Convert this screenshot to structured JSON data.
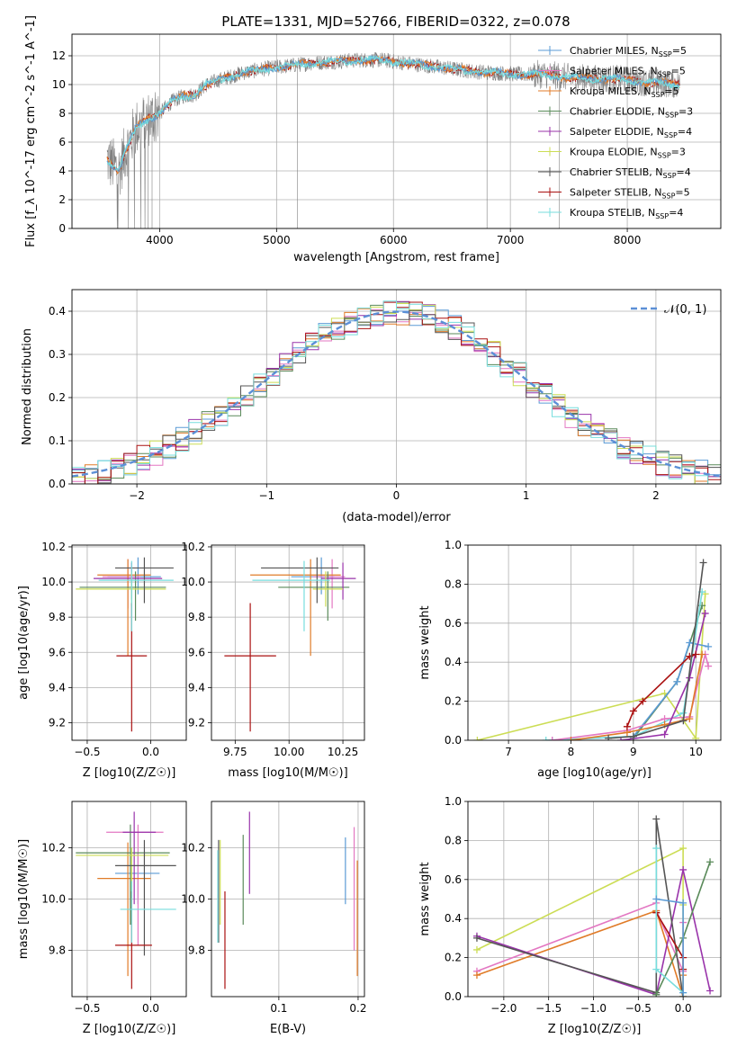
{
  "page": {
    "title": "PLATE=1331, MJD=52766, FIBERID=0322, z=0.078"
  },
  "colors": {
    "Chabrier MILES": "#5b9bd5",
    "Salpeter MILES": "#e377c2",
    "Kroupa MILES": "#e07b28",
    "Chabrier ELODIE": "#5a8a5a",
    "Salpeter ELODIE": "#9933aa",
    "Kroupa ELODIE": "#ccdd55",
    "Chabrier STELIB": "#555555",
    "Salpeter STELIB": "#aa1111",
    "Kroupa STELIB": "#77dddd",
    "data": "#808080",
    "normal": "#5b8fd6"
  },
  "chart_data": [
    {
      "id": "spectrum",
      "type": "line",
      "title": "PLATE=1331, MJD=52766, FIBERID=0322, z=0.078",
      "xlabel": "wavelength [Angstrom, rest frame]",
      "ylabel": "Flux [f_λ 10^-17 erg cm^-2 s^-1 A^-1]",
      "xlim": [
        3250,
        8800
      ],
      "ylim": [
        0,
        13.5
      ],
      "xticks": [
        4000,
        5000,
        6000,
        7000,
        8000
      ],
      "yticks": [
        0,
        2,
        4,
        6,
        8,
        10,
        12
      ],
      "legend_position": "top-right",
      "legend": [
        {
          "name": "Chabrier MILES",
          "n": "5"
        },
        {
          "name": "Salpeter MILES",
          "n": "5"
        },
        {
          "name": "Kroupa MILES",
          "n": "5"
        },
        {
          "name": "Chabrier ELODIE",
          "n": "3"
        },
        {
          "name": "Salpeter ELODIE",
          "n": "4"
        },
        {
          "name": "Kroupa ELODIE",
          "n": "3"
        },
        {
          "name": "Chabrier STELIB",
          "n": "4"
        },
        {
          "name": "Salpeter STELIB",
          "n": "5"
        },
        {
          "name": "Kroupa STELIB",
          "n": "4"
        }
      ],
      "continuum": [
        [
          3550,
          4.8
        ],
        [
          3650,
          4.0
        ],
        [
          3700,
          5.2
        ],
        [
          3800,
          7.0
        ],
        [
          3900,
          7.6
        ],
        [
          4000,
          8.0
        ],
        [
          4100,
          8.8
        ],
        [
          4200,
          9.2
        ],
        [
          4300,
          9.3
        ],
        [
          4400,
          10.0
        ],
        [
          4500,
          10.3
        ],
        [
          4700,
          10.8
        ],
        [
          4900,
          11.1
        ],
        [
          5100,
          11.3
        ],
        [
          5300,
          11.5
        ],
        [
          5500,
          11.6
        ],
        [
          5700,
          11.7
        ],
        [
          5900,
          11.7
        ],
        [
          6100,
          11.5
        ],
        [
          6300,
          11.3
        ],
        [
          6500,
          11.1
        ],
        [
          6700,
          10.9
        ],
        [
          6900,
          10.8
        ],
        [
          7100,
          10.7
        ],
        [
          7300,
          10.7
        ],
        [
          7500,
          10.5
        ],
        [
          7700,
          10.4
        ],
        [
          7900,
          10.4
        ],
        [
          8100,
          10.2
        ],
        [
          8300,
          10.1
        ],
        [
          8450,
          10.0
        ]
      ]
    },
    {
      "id": "residuals",
      "type": "histogram",
      "xlabel": "(data-model)/error",
      "ylabel": "Normed distribution",
      "xlim": [
        -2.5,
        2.5
      ],
      "ylim": [
        0,
        0.45
      ],
      "xticks": [
        -2,
        -1,
        0,
        1,
        2
      ],
      "yticks": [
        0.0,
        0.1,
        0.2,
        0.3,
        0.4
      ],
      "legend_label": "𝒩(0, 1)",
      "legend_position": "top-right",
      "bin_width": 0.1
    },
    {
      "id": "age-vs-Z",
      "type": "errorbar",
      "xlabel": "Z [log10(Z/Z☉)]",
      "ylabel": "age [log10(age/yr)]",
      "xlim": [
        -0.62,
        0.28
      ],
      "ylim": [
        9.1,
        10.21
      ],
      "xticks": [
        -0.5,
        0.0
      ],
      "yticks": [
        9.2,
        9.4,
        9.6,
        9.8,
        10.0,
        10.2
      ],
      "points": [
        {
          "model": "Chabrier MILES",
          "x": -0.1,
          "y": 10.03,
          "xerr": [
            0.24,
            0.18
          ],
          "yerr": [
            0.1,
            0.11
          ]
        },
        {
          "model": "Salpeter MILES",
          "x": -0.18,
          "y": 10.03,
          "xerr": [
            0.2,
            0.1
          ],
          "yerr": [
            0.18,
            0.1
          ]
        },
        {
          "model": "Kroupa MILES",
          "x": -0.18,
          "y": 10.04,
          "xerr": [
            0.24,
            0.18
          ],
          "yerr": [
            0.46,
            0.09
          ]
        },
        {
          "model": "Chabrier ELODIE",
          "x": -0.12,
          "y": 9.97,
          "xerr": [
            0.44,
            0.24
          ],
          "yerr": [
            0.19,
            0.09
          ]
        },
        {
          "model": "Salpeter ELODIE",
          "x": -0.15,
          "y": 10.02,
          "xerr": [
            0.3,
            0.24
          ],
          "yerr": [
            0.12,
            0.09
          ]
        },
        {
          "model": "Kroupa ELODIE",
          "x": -0.15,
          "y": 9.96,
          "xerr": [
            0.44,
            0.27
          ],
          "yerr": [
            0.1,
            0.1
          ]
        },
        {
          "model": "Chabrier STELIB",
          "x": -0.05,
          "y": 10.08,
          "xerr": [
            0.23,
            0.23
          ],
          "yerr": [
            0.2,
            0.06
          ]
        },
        {
          "model": "Salpeter STELIB",
          "x": -0.15,
          "y": 9.58,
          "xerr": [
            0.12,
            0.12
          ],
          "yerr": [
            0.43,
            0.3
          ]
        },
        {
          "model": "Kroupa STELIB",
          "x": -0.15,
          "y": 10.01,
          "xerr": [
            0.26,
            0.33
          ],
          "yerr": [
            0.29,
            0.11
          ]
        }
      ]
    },
    {
      "id": "age-vs-mass",
      "type": "errorbar",
      "xlabel": "mass [log10(M/M☉)]",
      "ylabel": "",
      "xlim": [
        9.64,
        10.35
      ],
      "ylim": [
        9.1,
        10.21
      ],
      "xticks": [
        9.75,
        10.0,
        10.25
      ],
      "yticks": [
        9.2,
        9.4,
        9.6,
        9.8,
        10.0,
        10.2
      ],
      "points": [
        {
          "model": "Chabrier MILES",
          "x": 10.15,
          "y": 10.03,
          "xerr": [
            0.14,
            0.06
          ],
          "yerr": [
            0.1,
            0.11
          ]
        },
        {
          "model": "Salpeter MILES",
          "x": 10.2,
          "y": 10.03,
          "xerr": [
            0.09,
            0.06
          ],
          "yerr": [
            0.18,
            0.1
          ]
        },
        {
          "model": "Kroupa MILES",
          "x": 10.1,
          "y": 10.04,
          "xerr": [
            0.28,
            0.14
          ],
          "yerr": [
            0.46,
            0.09
          ]
        },
        {
          "model": "Chabrier ELODIE",
          "x": 10.18,
          "y": 9.97,
          "xerr": [
            0.23,
            0.1
          ],
          "yerr": [
            0.19,
            0.09
          ]
        },
        {
          "model": "Salpeter ELODIE",
          "x": 10.25,
          "y": 10.02,
          "xerr": [
            0.1,
            0.06
          ],
          "yerr": [
            0.12,
            0.09
          ]
        },
        {
          "model": "Kroupa ELODIE",
          "x": 10.17,
          "y": 9.96,
          "xerr": [
            0.06,
            0.08
          ],
          "yerr": [
            0.1,
            0.1
          ]
        },
        {
          "model": "Chabrier STELIB",
          "x": 10.13,
          "y": 10.08,
          "xerr": [
            0.26,
            0.1
          ],
          "yerr": [
            0.2,
            0.06
          ]
        },
        {
          "model": "Salpeter STELIB",
          "x": 9.82,
          "y": 9.58,
          "xerr": [
            0.12,
            0.12
          ],
          "yerr": [
            0.43,
            0.3
          ]
        },
        {
          "model": "Kroupa STELIB",
          "x": 10.07,
          "y": 10.01,
          "xerr": [
            0.24,
            0.12
          ],
          "yerr": [
            0.29,
            0.11
          ]
        }
      ]
    },
    {
      "id": "massweight-vs-age",
      "type": "line",
      "xlabel": "age [log10(age/yr)]",
      "ylabel": "mass weight",
      "xlim": [
        6.35,
        10.4
      ],
      "ylim": [
        0,
        1.0
      ],
      "xticks": [
        7,
        8,
        9,
        10
      ],
      "yticks": [
        0.0,
        0.2,
        0.4,
        0.6,
        0.8,
        1.0
      ],
      "series": [
        {
          "model": "Kroupa ELODIE",
          "x": [
            6.5,
            9.5,
            10.0,
            10.15
          ],
          "y": [
            0.0,
            0.24,
            0.01,
            0.75
          ]
        },
        {
          "model": "Chabrier ELODIE",
          "x": [
            9.0,
            9.7,
            10.1
          ],
          "y": [
            0.01,
            0.3,
            0.69
          ]
        },
        {
          "model": "Chabrier MILES",
          "x": [
            7.7,
            9.0,
            9.7,
            9.9,
            10.2
          ],
          "y": [
            0.0,
            0.02,
            0.3,
            0.5,
            0.48
          ]
        },
        {
          "model": "Kroupa STELIB",
          "x": [
            7.6,
            9.0,
            9.8,
            10.1
          ],
          "y": [
            0.0,
            0.02,
            0.14,
            0.76
          ]
        },
        {
          "model": "Salpeter MILES",
          "x": [
            7.7,
            8.9,
            9.5,
            9.9,
            10.15,
            10.2
          ],
          "y": [
            0.0,
            0.05,
            0.11,
            0.12,
            0.44,
            0.38
          ]
        },
        {
          "model": "Kroupa MILES",
          "x": [
            8.0,
            8.9,
            9.5,
            9.9,
            10.1
          ],
          "y": [
            0.0,
            0.04,
            0.08,
            0.11,
            0.44
          ]
        },
        {
          "model": "Salpeter ELODIE",
          "x": [
            8.8,
            9.5,
            9.9,
            10.15
          ],
          "y": [
            0.0,
            0.03,
            0.32,
            0.65
          ]
        },
        {
          "model": "Salpeter STELIB",
          "x": [
            8.9,
            9.0,
            9.15,
            9.9,
            10.0
          ],
          "y": [
            0.07,
            0.15,
            0.2,
            0.43,
            0.44
          ]
        },
        {
          "model": "Chabrier STELIB",
          "x": [
            8.6,
            9.0,
            9.8,
            10.12
          ],
          "y": [
            0.01,
            0.02,
            0.1,
            0.91
          ]
        }
      ]
    },
    {
      "id": "mass-vs-Z",
      "type": "errorbar",
      "xlabel": "Z [log10(Z/Z☉)]",
      "ylabel": "mass [log10(M/M☉)]",
      "xlim": [
        -0.62,
        0.28
      ],
      "ylim": [
        9.62,
        10.38
      ],
      "xticks": [
        -0.5,
        0.0
      ],
      "yticks": [
        9.8,
        10.0,
        10.2
      ],
      "points": [
        {
          "model": "Chabrier MILES",
          "x": -0.1,
          "y": 10.1,
          "xerr": [
            0.18,
            0.17
          ],
          "yerr": [
            0.12,
            0.08
          ]
        },
        {
          "model": "Salpeter MILES",
          "x": -0.1,
          "y": 10.26,
          "xerr": [
            0.25,
            0.2
          ],
          "yerr": [
            0.44,
            0.03
          ]
        },
        {
          "model": "Kroupa MILES",
          "x": -0.18,
          "y": 10.08,
          "xerr": [
            0.24,
            0.18
          ],
          "yerr": [
            0.38,
            0.14
          ]
        },
        {
          "model": "Chabrier ELODIE",
          "x": -0.16,
          "y": 10.18,
          "xerr": [
            0.43,
            0.31
          ],
          "yerr": [
            0.28,
            0.11
          ]
        },
        {
          "model": "Salpeter ELODIE",
          "x": -0.13,
          "y": 10.26,
          "xerr": [
            0.09,
            0.17
          ],
          "yerr": [
            0.28,
            0.08
          ]
        },
        {
          "model": "Kroupa ELODIE",
          "x": -0.15,
          "y": 10.17,
          "xerr": [
            0.44,
            0.29
          ],
          "yerr": [
            0.27,
            0.03
          ]
        },
        {
          "model": "Chabrier STELIB",
          "x": -0.05,
          "y": 10.13,
          "xerr": [
            0.23,
            0.25
          ],
          "yerr": [
            0.35,
            0.1
          ]
        },
        {
          "model": "Salpeter STELIB",
          "x": -0.15,
          "y": 9.82,
          "xerr": [
            0.13,
            0.16
          ],
          "yerr": [
            0.17,
            0.21
          ]
        },
        {
          "model": "Kroupa STELIB",
          "x": -0.15,
          "y": 9.96,
          "xerr": [
            0.09,
            0.35
          ],
          "yerr": [
            0.13,
            0.11
          ]
        }
      ]
    },
    {
      "id": "mass-vs-EBV",
      "type": "errorbar",
      "xlabel": "E(B-V)",
      "ylabel": "",
      "xlim": [
        0.015,
        0.208
      ],
      "ylim": [
        9.62,
        10.38
      ],
      "xticks": [
        0.1,
        0.2
      ],
      "yticks": [
        9.8,
        10.0,
        10.2
      ],
      "points": [
        {
          "model": "Chabrier MILES",
          "x": 0.184,
          "y": 10.1,
          "yerr": [
            0.12,
            0.14
          ]
        },
        {
          "model": "Salpeter MILES",
          "x": 0.195,
          "y": 10.26,
          "yerr": [
            0.46,
            0.02
          ]
        },
        {
          "model": "Kroupa MILES",
          "x": 0.199,
          "y": 10.08,
          "yerr": [
            0.38,
            0.07
          ]
        },
        {
          "model": "Chabrier ELODIE",
          "x": 0.055,
          "y": 10.18,
          "yerr": [
            0.28,
            0.07
          ]
        },
        {
          "model": "Salpeter ELODIE",
          "x": 0.063,
          "y": 10.26,
          "yerr": [
            0.24,
            0.08
          ]
        },
        {
          "model": "Kroupa ELODIE",
          "x": 0.026,
          "y": 10.17,
          "yerr": [
            0.27,
            0.06
          ]
        },
        {
          "model": "Chabrier STELIB",
          "x": 0.024,
          "y": 10.13,
          "yerr": [
            0.3,
            0.1
          ]
        },
        {
          "model": "Salpeter STELIB",
          "x": 0.032,
          "y": 9.82,
          "yerr": [
            0.17,
            0.21
          ]
        },
        {
          "model": "Kroupa STELIB",
          "x": 0.023,
          "y": 10.0,
          "yerr": [
            0.17,
            0.19
          ]
        }
      ]
    },
    {
      "id": "massweight-vs-Z",
      "type": "line",
      "xlabel": "Z [log10(Z/Z☉)]",
      "ylabel": "mass weight",
      "xlim": [
        -2.4,
        0.42
      ],
      "ylim": [
        0,
        1.0
      ],
      "xticks": [
        -2.0,
        -1.5,
        -1.0,
        -0.5,
        0.0
      ],
      "yticks": [
        0.0,
        0.2,
        0.4,
        0.6,
        0.8,
        1.0
      ],
      "series": [
        {
          "model": "Kroupa ELODIE",
          "x": [
            -2.3,
            0.0,
            0.0,
            0.0
          ],
          "y": [
            0.24,
            0.76,
            0.47,
            0.0
          ]
        },
        {
          "model": "Salpeter MILES",
          "x": [
            -2.3,
            -0.3,
            -0.3,
            0.0,
            0.0
          ],
          "y": [
            0.13,
            0.48,
            0.44,
            0.13,
            0.38
          ]
        },
        {
          "model": "Kroupa MILES",
          "x": [
            -2.3,
            -0.3,
            0.0,
            0.0
          ],
          "y": [
            0.11,
            0.44,
            0.0,
            0.11
          ]
        },
        {
          "model": "Salpeter ELODIE",
          "x": [
            -2.3,
            -0.3,
            0.0,
            0.3
          ],
          "y": [
            0.31,
            0.01,
            0.65,
            0.03
          ]
        },
        {
          "model": "Chabrier STELIB",
          "x": [
            -2.3,
            -0.3,
            -0.3,
            0.0
          ],
          "y": [
            0.3,
            0.02,
            0.91,
            0.0
          ]
        },
        {
          "model": "Chabrier ELODIE",
          "x": [
            -0.3,
            0.0,
            0.3
          ],
          "y": [
            0.01,
            0.3,
            0.69
          ]
        },
        {
          "model": "Salpeter STELIB",
          "x": [
            -0.3,
            0.0,
            0.0
          ],
          "y": [
            0.43,
            0.2,
            0.14
          ]
        },
        {
          "model": "Kroupa STELIB",
          "x": [
            -0.3,
            -0.3,
            0.0
          ],
          "y": [
            0.76,
            0.14,
            0.02
          ]
        },
        {
          "model": "Chabrier MILES",
          "x": [
            -0.3,
            0.0,
            0.0
          ],
          "y": [
            0.5,
            0.48,
            0.02
          ]
        }
      ]
    }
  ]
}
